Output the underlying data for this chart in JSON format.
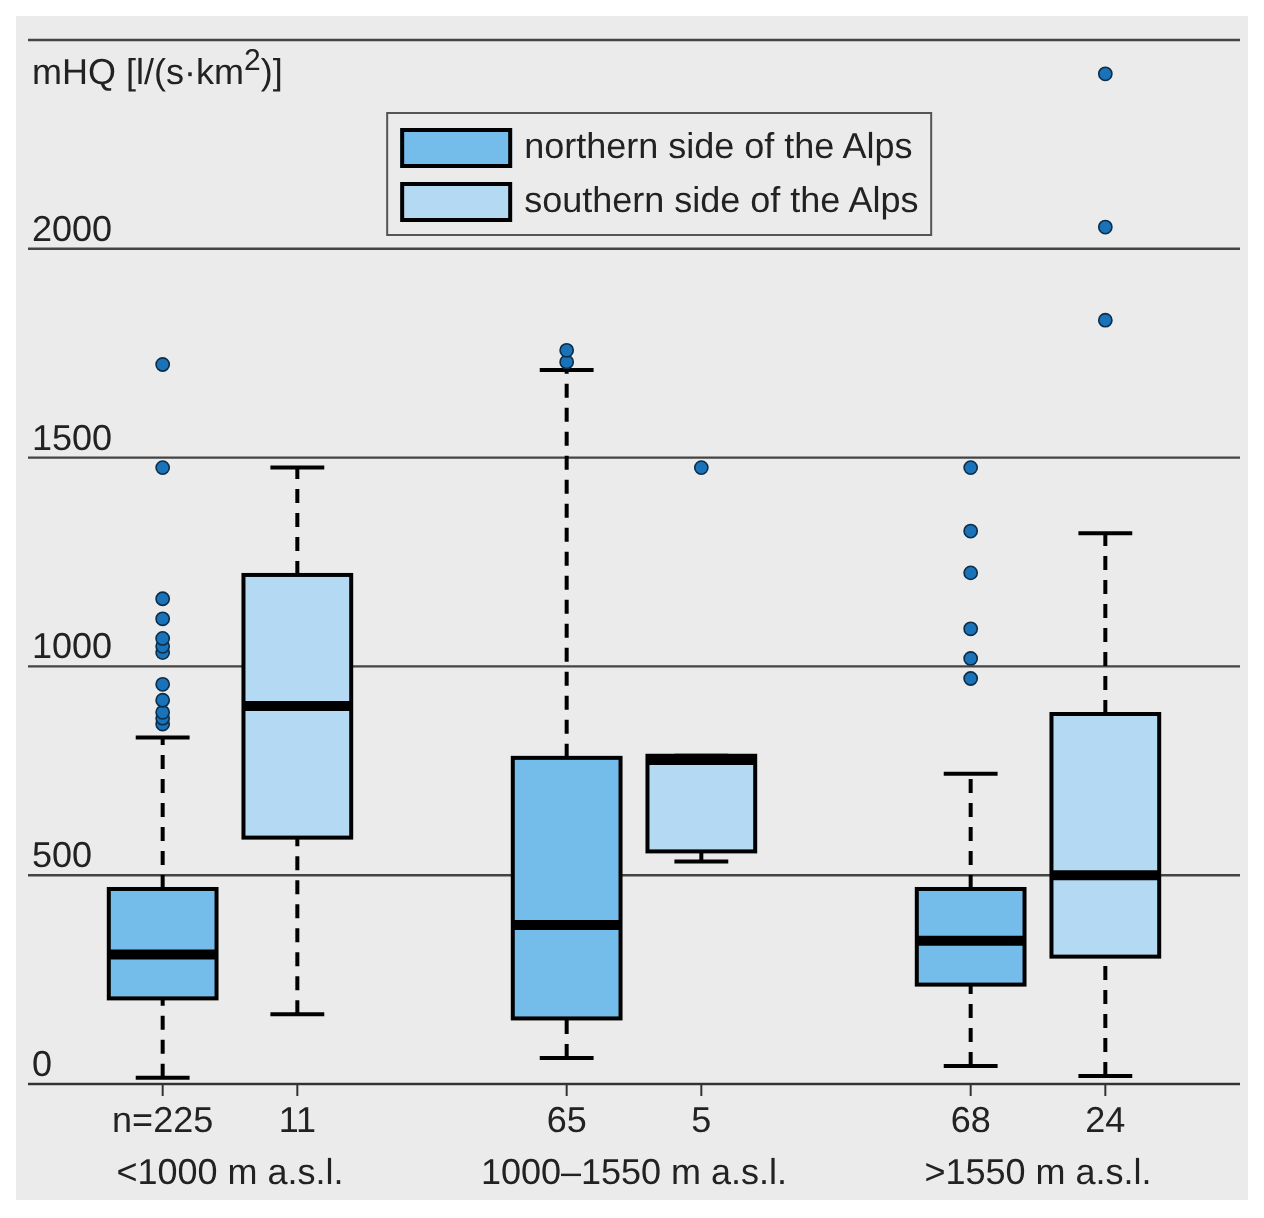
{
  "chart_data": {
    "type": "box",
    "ylabel": "mHQ [l/(s·km$^{2}$)]",
    "categories": [
      "<1000 m a.s.l.",
      "1000–1550 m a.s.l.",
      ">1550 m a.s.l."
    ],
    "series": [
      {
        "name": "northern side of the Alps",
        "color": "#74bdea",
        "value_labels": [
          "n=225",
          "65",
          "68"
        ],
        "boxes": [
          {
            "low": 15,
            "q1": 205,
            "median": 310,
            "q3": 467,
            "high": 830,
            "outliers": [
              862,
              876,
              890,
              919,
              957,
              1033,
              1048,
              1067,
              1114,
              1162,
              1476,
              1723
            ]
          },
          {
            "low": 62,
            "q1": 157,
            "median": 381,
            "q3": 781,
            "high": 1710,
            "outliers": [
              1729,
              1757
            ]
          },
          {
            "low": 43,
            "q1": 238,
            "median": 343,
            "q3": 467,
            "high": 743,
            "outliers": [
              971,
              1019,
              1090,
              1224,
              1324,
              1476
            ]
          }
        ]
      },
      {
        "name": "southern side of the Alps",
        "color": "#b3d9f3",
        "value_labels": [
          "11",
          "5",
          "24"
        ],
        "boxes": [
          {
            "low": 167,
            "q1": 590,
            "median": 905,
            "q3": 1219,
            "high": 1476
          },
          {
            "low": 533,
            "q1": 557,
            "median": 776,
            "q3": 786,
            "high": 786,
            "outliers": [
              1476
            ]
          },
          {
            "low": 19,
            "q1": 305,
            "median": 500,
            "q3": 886,
            "high": 1319,
            "outliers": [
              1829,
              2052,
              2419
            ]
          }
        ]
      }
    ],
    "ylim": [
      0,
      2500
    ],
    "yticks": [
      0,
      500,
      1000,
      1500,
      2000,
      {
        "value": 2500,
        "label": null
      }
    ],
    "grid": "y",
    "legend": "top",
    "marker": "circle"
  }
}
